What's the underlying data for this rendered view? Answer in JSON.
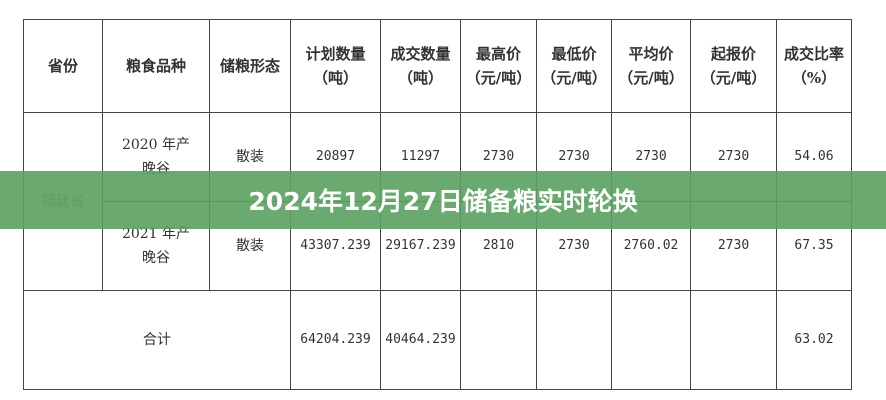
{
  "table": {
    "headers": [
      [
        "省份"
      ],
      [
        "粮食品种"
      ],
      [
        "储粮形态"
      ],
      [
        "计划数量",
        "（吨）"
      ],
      [
        "成交数量",
        "（吨）"
      ],
      [
        "最高价",
        "（元/吨）"
      ],
      [
        "最低价",
        "（元/吨）"
      ],
      [
        "平均价",
        "（元/吨）"
      ],
      [
        "起报价",
        "（元/吨）"
      ],
      [
        "成交比率",
        "（%）"
      ]
    ],
    "province": "福建省",
    "rows": [
      {
        "variety": [
          "2020 年产",
          "晚谷"
        ],
        "form": "散装",
        "planned": "20897",
        "traded": "11297",
        "max": "2730",
        "min": "2730",
        "avg": "2730",
        "start": "2730",
        "ratio": "54.06"
      },
      {
        "variety": [
          "2021 年产",
          "晚谷"
        ],
        "form": "散装",
        "planned": "43307.239",
        "traded": "29167.239",
        "max": "2810",
        "min": "2730",
        "avg": "2760.02",
        "start": "2730",
        "ratio": "67.35"
      }
    ],
    "total": {
      "label": "合计",
      "planned": "64204.239",
      "traded": "40464.239",
      "ratio": "63.02"
    }
  },
  "banner": {
    "title": "2024年12月27日储备粮实时轮换"
  }
}
